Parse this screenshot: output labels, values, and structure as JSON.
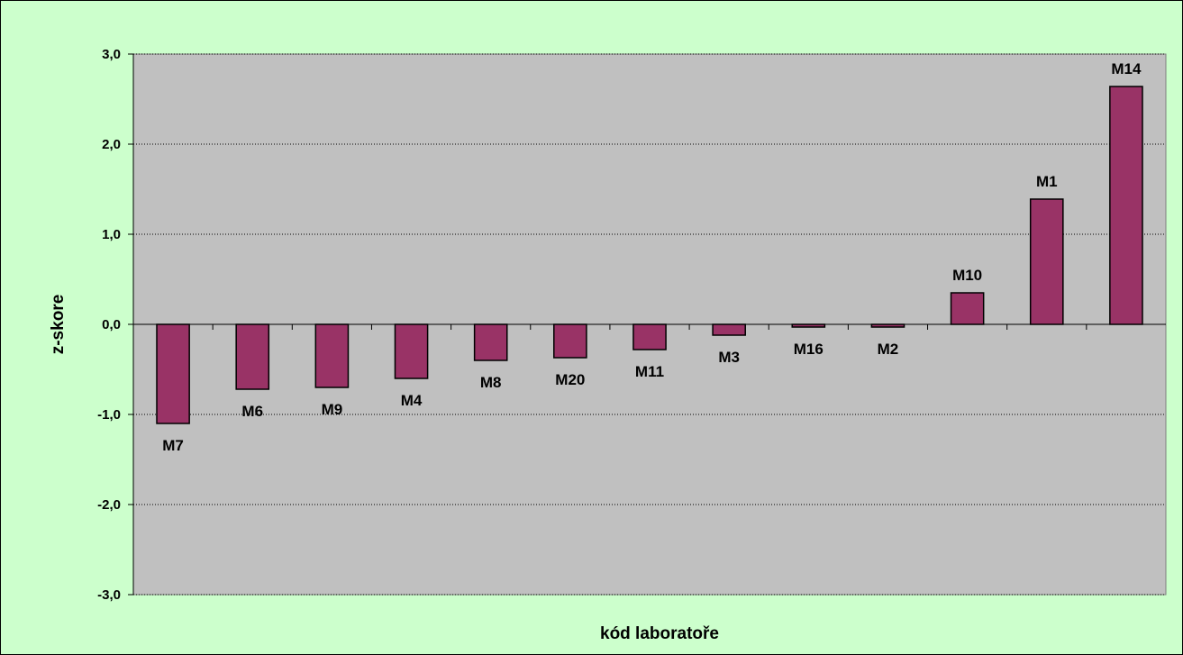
{
  "chart_data": {
    "type": "bar",
    "title": "",
    "xlabel": "kód laboratoře",
    "ylabel": "z-skore",
    "ylim": [
      -3,
      3
    ],
    "yticks": [
      3,
      2,
      1,
      0,
      -1,
      -2,
      -3
    ],
    "ytick_labels": [
      "3,0",
      "2,0",
      "1,0",
      "0,0",
      "-1,0",
      "-2,0",
      "-3,0"
    ],
    "categories": [
      "M7",
      "M6",
      "M9",
      "M4",
      "M8",
      "M20",
      "M11",
      "M3",
      "M16",
      "M2",
      "M10",
      "M1",
      "M14"
    ],
    "values": [
      -1.1,
      -0.72,
      -0.7,
      -0.6,
      -0.4,
      -0.37,
      -0.28,
      -0.12,
      -0.03,
      -0.03,
      0.35,
      1.39,
      2.64
    ],
    "grid": true,
    "legend": "none",
    "colors": {
      "bar_fill": "#993366",
      "plot_background": "#c0c0c0",
      "chart_background": "#ccffcc",
      "gridline": "#000000"
    }
  }
}
